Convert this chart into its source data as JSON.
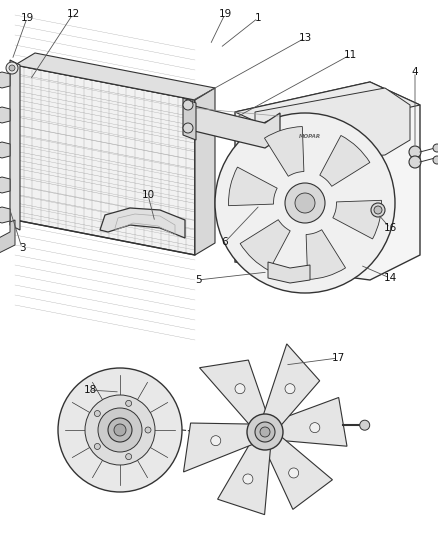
{
  "bg_color": "#ffffff",
  "fig_width": 4.38,
  "fig_height": 5.33,
  "dpi": 100,
  "line_color": "#333333",
  "label_fontsize": 7.5,
  "label_color": "#111111",
  "leader_color": "#555555"
}
